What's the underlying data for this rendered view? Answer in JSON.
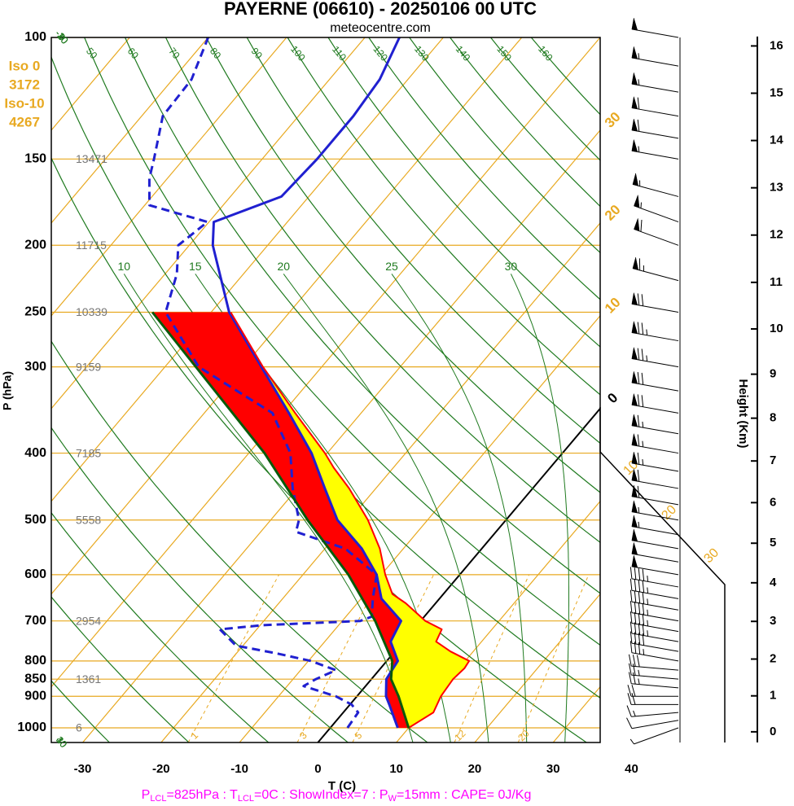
{
  "chart_data": {
    "type": "skewt",
    "title": "PAYERNE (06610) - 20250106 00 UTC",
    "subtitle": "meteocentre.com",
    "x_label": "T (C)",
    "y_label": "P (hPa)",
    "y2_label": "Height (Km)",
    "footer": [
      "P",
      "LCL",
      "=825hPa : T",
      "LCL",
      "=0C : ShowIndex=7 : P",
      "W",
      "=15mm : CAPE= 0J/Kg"
    ],
    "freezing_levels": [
      "Iso 0",
      "3172",
      "Iso-10",
      "4267"
    ],
    "ylim": [
      1050,
      100
    ],
    "yticks": [
      100,
      150,
      200,
      250,
      300,
      400,
      500,
      600,
      700,
      800,
      850,
      900,
      1000
    ],
    "y_scale": "log",
    "xlim": [
      -34,
      36
    ],
    "xticks": [
      -30,
      -20,
      -10,
      0,
      10,
      20,
      30,
      40
    ],
    "y2lim": [
      -0.3,
      16.2
    ],
    "y2ticks": [
      0,
      1,
      2,
      3,
      4,
      5,
      6,
      7,
      8,
      9,
      10,
      11,
      12,
      13,
      14,
      15,
      16
    ],
    "geopotential_heights": {
      "pressure": [
        150,
        200,
        250,
        300,
        400,
        500,
        700,
        850,
        1000
      ],
      "values": [
        13471,
        11715,
        10339,
        9159,
        7185,
        5558,
        2954,
        1361,
        6
      ]
    },
    "isotherms": [
      -110,
      -100,
      -90,
      -80,
      -70,
      -60,
      -50,
      -40,
      -30,
      -20,
      -10,
      0,
      10,
      20,
      30,
      40
    ],
    "isotherm_labels": [
      {
        "value": -30,
        "label": "30"
      },
      {
        "value": -20,
        "label": "20"
      },
      {
        "value": -10,
        "label": "10"
      },
      0
    ],
    "isotherm_color": "#e8a921",
    "zero_isotherm_color": "#000000",
    "panel_labels": [
      10,
      20,
      30
    ],
    "dry_adiabats": [
      -30,
      -20,
      -10,
      0,
      10,
      30,
      40,
      50,
      60,
      70,
      80,
      90,
      100,
      110,
      120,
      130,
      140,
      150,
      160
    ],
    "moist_adiabats": [
      10,
      15,
      20,
      25,
      30
    ],
    "adiabat_color": "#1f7a1f",
    "mixing_ratios": [
      1,
      3,
      5,
      12,
      20
    ],
    "series": [
      {
        "color": "#2020d0",
        "style": "solid",
        "pressure": [
          1000,
          925,
          900,
          850,
          800,
          750,
          700,
          650,
          600,
          550,
          500,
          450,
          400,
          350,
          300,
          250,
          200,
          185,
          170,
          150,
          130,
          115,
          100
        ],
        "values": [
          8.6,
          5.0,
          3.7,
          1.9,
          1.4,
          -1.6,
          -2.5,
          -7.4,
          -10.6,
          -15.3,
          -21.5,
          -26.5,
          -32,
          -39.2,
          -47.7,
          -57.7,
          -67,
          -69.4,
          -63.5,
          -63,
          -63,
          -63.6,
          -65.6
        ]
      },
      {
        "color": "#2020d0",
        "style": "dashed",
        "pressure": [
          1000,
          950,
          925,
          900,
          870,
          850,
          825,
          800,
          780,
          760,
          720,
          710,
          700,
          690,
          650,
          600,
          550,
          520,
          500,
          450,
          400,
          350,
          300,
          250,
          220,
          200,
          185,
          175,
          160,
          150,
          130,
          115,
          100
        ],
        "values": [
          2.2,
          1.9,
          0.2,
          -2.7,
          -7.9,
          -7.1,
          -5.5,
          -9.7,
          -14.9,
          -20.9,
          -24.7,
          -19.7,
          -7.7,
          -6.7,
          -8.5,
          -10.6,
          -17.4,
          -25.5,
          -26.4,
          -30.6,
          -34.7,
          -41.3,
          -55.7,
          -65.8,
          -68.5,
          -71.4,
          -70.2,
          -79.4,
          -82.3,
          -83.8,
          -87.3,
          -87.6,
          -90
        ]
      },
      {
        "color": "#ff0000",
        "style": "solid",
        "fill": "#ffff00",
        "pressure": [
          1000,
          950,
          900,
          850,
          820,
          800,
          775,
          750,
          720,
          700,
          660,
          640,
          600,
          550,
          500,
          450,
          420,
          400,
          350,
          300,
          250
        ],
        "values": [
          10.0,
          11.5,
          10.7,
          10.4,
          10.7,
          10.5,
          7.1,
          4.2,
          3.6,
          0.6,
          -3.8,
          -6.5,
          -9.5,
          -13.0,
          -17.6,
          -23.4,
          -27.6,
          -30.3,
          -38.4,
          -47.5,
          -57.5
        ]
      },
      {
        "color": "#0a5a0a",
        "style": "solid",
        "fill": "#ff0000",
        "pressure": [
          1000,
          900,
          850,
          800,
          700,
          600,
          500,
          400,
          250
        ],
        "values": [
          10.0,
          5.3,
          2.5,
          0.7,
          -5.8,
          -14.2,
          -25.3,
          -38,
          -67.5
        ]
      }
    ],
    "winds": {
      "pressure": [
        1000,
        975,
        950,
        925,
        900,
        875,
        850,
        825,
        800,
        775,
        750,
        725,
        700,
        675,
        650,
        625,
        600,
        575,
        550,
        525,
        500,
        475,
        450,
        425,
        400,
        375,
        350,
        325,
        300,
        275,
        250,
        225,
        200,
        185,
        170,
        150,
        140,
        130,
        120,
        110,
        100
      ],
      "speed": [
        5,
        10,
        15,
        20,
        20,
        25,
        25,
        30,
        35,
        40,
        45,
        45,
        45,
        45,
        45,
        45,
        50,
        50,
        50,
        55,
        55,
        60,
        60,
        65,
        65,
        65,
        70,
        70,
        75,
        75,
        70,
        65,
        60,
        55,
        55,
        55,
        60,
        60,
        55,
        55,
        50
      ],
      "direction": [
        250,
        260,
        265,
        270,
        270,
        275,
        275,
        275,
        280,
        280,
        280,
        280,
        280,
        280,
        280,
        280,
        280,
        280,
        280,
        280,
        280,
        280,
        280,
        280,
        280,
        280,
        280,
        280,
        280,
        280,
        280,
        285,
        290,
        290,
        285,
        280,
        280,
        280,
        280,
        280,
        280
      ]
    }
  }
}
